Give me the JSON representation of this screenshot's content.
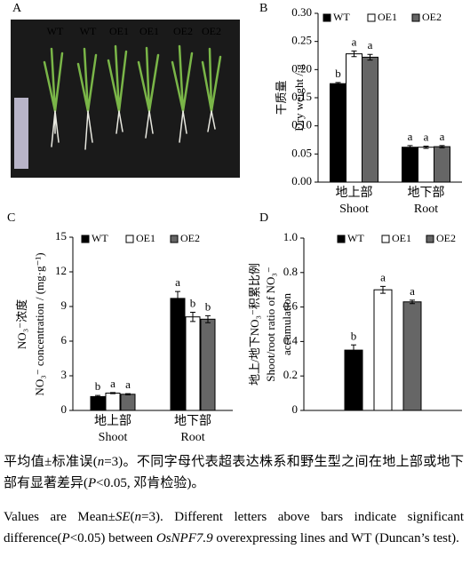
{
  "panel_a": {
    "label": "A",
    "lanes": [
      "WT",
      "WT",
      "OE1",
      "OE1",
      "OE2",
      "OE2"
    ]
  },
  "chart_data": [
    {
      "type": "bar",
      "panel_label": "B",
      "ylabel": [
        "干质量",
        "Dry weight / g"
      ],
      "categories": [
        [
          "地上部",
          "Shoot"
        ],
        [
          "地下部",
          "Root"
        ]
      ],
      "series": [
        {
          "name": "WT",
          "color": "#000000",
          "values": [
            0.175,
            0.062
          ],
          "errors": [
            0.002,
            0.003
          ],
          "letters": [
            "b",
            "a"
          ]
        },
        {
          "name": "OE1",
          "color": "#ffffff",
          "values": [
            0.228,
            0.062
          ],
          "errors": [
            0.005,
            0.002
          ],
          "letters": [
            "a",
            "a"
          ]
        },
        {
          "name": "OE2",
          "color": "#666666",
          "values": [
            0.222,
            0.063
          ],
          "errors": [
            0.005,
            0.002
          ],
          "letters": [
            "a",
            "a"
          ]
        }
      ],
      "ylim": [
        0,
        0.3
      ],
      "yticks": [
        {
          "value": 0,
          "label": "0.00"
        },
        {
          "value": 0.05,
          "label": "0.05"
        },
        {
          "value": 0.1,
          "label": "0.10"
        },
        {
          "value": 0.15,
          "label": "0.15"
        },
        {
          "value": 0.2,
          "label": "0.20"
        },
        {
          "value": 0.25,
          "label": "0.25"
        },
        {
          "value": 0.3,
          "label": "0.30"
        }
      ],
      "legend": "top"
    },
    {
      "type": "bar",
      "panel_label": "C",
      "ylabel": [
        "NO₃⁻浓度",
        "NO₃⁻ concentration / (mg·g⁻¹)"
      ],
      "categories": [
        [
          "地上部",
          "Shoot"
        ],
        [
          "地下部",
          "Root"
        ]
      ],
      "series": [
        {
          "name": "WT",
          "color": "#000000",
          "values": [
            1.2,
            9.7
          ],
          "errors": [
            0.1,
            0.6
          ],
          "letters": [
            "b",
            "a"
          ]
        },
        {
          "name": "OE1",
          "color": "#ffffff",
          "values": [
            1.5,
            8.1
          ],
          "errors": [
            0.05,
            0.4
          ],
          "letters": [
            "a",
            "b"
          ]
        },
        {
          "name": "OE2",
          "color": "#666666",
          "values": [
            1.4,
            7.9
          ],
          "errors": [
            0.05,
            0.3
          ],
          "letters": [
            "a",
            "b"
          ]
        }
      ],
      "ylim": [
        0,
        15
      ],
      "yticks": [
        0,
        3,
        6,
        9,
        12,
        15
      ],
      "legend": "top"
    },
    {
      "type": "bar",
      "panel_label": "D",
      "ylabel": [
        "地上/地下NO₃⁻积累比例",
        "Shoot/root ratio of NO₃⁻",
        "accumulation"
      ],
      "categories": [
        null
      ],
      "series": [
        {
          "name": "WT",
          "color": "#000000",
          "values": [
            0.35
          ],
          "errors": [
            0.03
          ],
          "letters": [
            "b"
          ]
        },
        {
          "name": "OE1",
          "color": "#ffffff",
          "values": [
            0.7
          ],
          "errors": [
            0.02
          ],
          "letters": [
            "a"
          ]
        },
        {
          "name": "OE2",
          "color": "#666666",
          "values": [
            0.63
          ],
          "errors": [
            0.01
          ],
          "letters": [
            "a"
          ]
        }
      ],
      "ylim": [
        0,
        1
      ],
      "yticks": [
        0,
        0.2,
        0.4,
        0.6,
        0.8,
        {
          "value": 1,
          "label": "1.0"
        }
      ],
      "legend": "top"
    }
  ],
  "caption": {
    "zh": [
      {
        "text": "平均值±标准误("
      },
      {
        "text": "n",
        "italic": true
      },
      {
        "text": "=3)。不同字母代表超表达株系和野生型之间在地上部或地下部有显著差异("
      },
      {
        "text": "P",
        "italic": true
      },
      {
        "text": "<0.05, 邓肯检验)。"
      }
    ],
    "en": [
      {
        "text": "Values are Mean±"
      },
      {
        "text": "SE",
        "italic": true
      },
      {
        "text": "("
      },
      {
        "text": "n",
        "italic": true
      },
      {
        "text": "=3). Different letters above bars indicate significant difference("
      },
      {
        "text": "P",
        "italic": true
      },
      {
        "text": "<0.05) between "
      },
      {
        "text": "OsNPF7.9",
        "italic": true
      },
      {
        "text": " overexpressing lines and WT (Duncan’s test)."
      }
    ]
  }
}
